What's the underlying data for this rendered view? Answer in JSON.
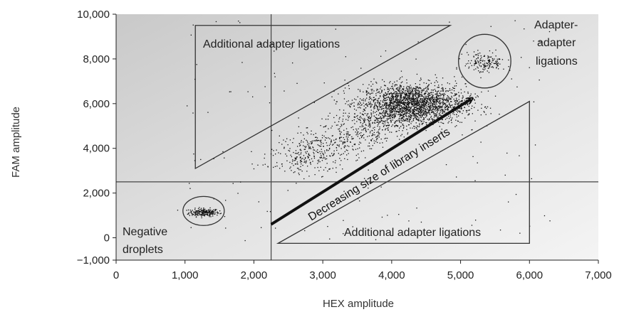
{
  "chart_data": {
    "type": "scatter",
    "title": "",
    "xlabel": "HEX amplitude",
    "ylabel": "FAM amplitude",
    "xlim": [
      0,
      7000
    ],
    "ylim": [
      -1000,
      10000
    ],
    "x_ticks": [
      0,
      1000,
      2000,
      3000,
      4000,
      5000,
      6000,
      7000
    ],
    "x_tick_labels": [
      "0",
      "1,000",
      "2,000",
      "3,000",
      "4,000",
      "5,000",
      "6,000",
      "7,000"
    ],
    "y_ticks": [
      -1000,
      0,
      2000,
      4000,
      6000,
      8000,
      10000
    ],
    "y_tick_labels": [
      "−1,000",
      "0",
      "2,000",
      "4,000",
      "6,000",
      "8,000",
      "10,000"
    ],
    "threshold_x": 2250,
    "threshold_y": 2500,
    "series": [
      {
        "cluster": "negative",
        "center": [
          1270,
          1150
        ],
        "spread": [
          110,
          90
        ],
        "count": 220
      },
      {
        "cluster": "main",
        "center": [
          4300,
          6000
        ],
        "spread": [
          380,
          450
        ],
        "count": 2000
      },
      {
        "cluster": "main-tail",
        "from": [
          2500,
          3300
        ],
        "to": [
          4300,
          6000
        ],
        "spread": [
          260,
          420
        ],
        "count": 800
      },
      {
        "cluster": "adapter-adapter",
        "center": [
          5350,
          7850
        ],
        "spread": [
          150,
          240
        ],
        "count": 160
      },
      {
        "cluster": "scattered",
        "x_range": [
          1000,
          6300
        ],
        "y_range": [
          -300,
          9800
        ],
        "count": 140
      }
    ],
    "circles": [
      {
        "label": "Negative droplets",
        "cx": 1270,
        "cy": 1200,
        "rx": 300,
        "ry": 650
      },
      {
        "label": "Adapter-adapter ligations",
        "cx": 5350,
        "cy": 7900,
        "rx": 380,
        "ry": 1200
      }
    ],
    "triangles": [
      {
        "label": "Additional adapter ligations",
        "points": [
          [
            1150,
            9500
          ],
          [
            4850,
            9500
          ],
          [
            1150,
            3100
          ]
        ]
      },
      {
        "label": "Additional adapter ligations",
        "points": [
          [
            2350,
            -250
          ],
          [
            6000,
            -250
          ],
          [
            6000,
            6100
          ]
        ]
      }
    ],
    "arrow": {
      "label": "Decreasing size of library inserts",
      "from": [
        2250,
        600
      ],
      "to": [
        5150,
        6200
      ]
    },
    "annotations": [
      {
        "text": "Additional adapter ligations"
      },
      {
        "text": "Additional adapter ligations"
      },
      {
        "text": "Negative"
      },
      {
        "text": "droplets"
      },
      {
        "text": "Adapter-"
      },
      {
        "text": "adapter"
      },
      {
        "text": "ligations"
      }
    ]
  }
}
